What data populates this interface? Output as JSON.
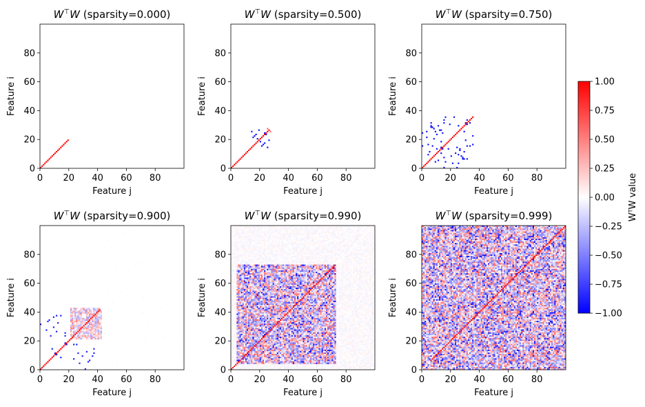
{
  "chart_data": [
    {
      "type": "heatmap",
      "title": "W^T W (sparsity=0.000)",
      "title_math": "W",
      "title_sup": "⊤",
      "title_math2": "W",
      "title_rest": " (sparsity=0.000)",
      "xlabel": "Feature  j",
      "ylabel": "Feature  i",
      "xticks": [
        0,
        20,
        40,
        60,
        80
      ],
      "yticks": [
        0,
        20,
        40,
        60,
        80
      ],
      "xlim": [
        0,
        99
      ],
      "ylim": [
        0,
        99
      ],
      "matrix_size": 100,
      "diagonal_extent": 20,
      "structure": "diagonal of +1 for first 20 features, zeros elsewhere"
    },
    {
      "type": "heatmap",
      "title": "W^T W (sparsity=0.500)",
      "title_math": "W",
      "title_sup": "⊤",
      "title_math2": "W",
      "title_rest": " (sparsity=0.500)",
      "xlabel": "Feature  j",
      "ylabel": "Feature  i",
      "xticks": [
        0,
        20,
        40,
        60,
        80
      ],
      "yticks": [
        0,
        20,
        40,
        60,
        80
      ],
      "xlim": [
        0,
        99
      ],
      "ylim": [
        0,
        99
      ],
      "matrix_size": 100,
      "diagonal_extent": 27,
      "structure": "diagonal of +1 up to ~27, a few negative off-diagonal entries near features 14-26"
    },
    {
      "type": "heatmap",
      "title": "W^T W (sparsity=0.750)",
      "title_math": "W",
      "title_sup": "⊤",
      "title_math2": "W",
      "title_rest": " (sparsity=0.750)",
      "xlabel": "Feature  j",
      "ylabel": "Feature  i",
      "xticks": [
        0,
        20,
        40,
        60,
        80
      ],
      "yticks": [
        0,
        20,
        40,
        60,
        80
      ],
      "xlim": [
        0,
        99
      ],
      "ylim": [
        0,
        99
      ],
      "matrix_size": 100,
      "diagonal_extent": 36,
      "structure": "diagonal of +1 up to ~36, scattered -1 entries forming antipodal pairs"
    },
    {
      "type": "heatmap",
      "title": "W^T W (sparsity=0.900)",
      "title_math": "W",
      "title_sup": "⊤",
      "title_math2": "W",
      "title_rest": " (sparsity=0.900)",
      "xlabel": "Feature  j",
      "ylabel": "Feature  i",
      "xticks": [
        0,
        20,
        40,
        60,
        80
      ],
      "yticks": [
        0,
        20,
        40,
        60,
        80
      ],
      "xlim": [
        0,
        99
      ],
      "ylim": [
        0,
        99
      ],
      "matrix_size": 100,
      "diagonal_extent": 42,
      "structure": "diagonal of +1 up to ~42, dense block with mixed signs for features 21-42"
    },
    {
      "type": "heatmap",
      "title": "W^T W (sparsity=0.990)",
      "title_math": "W",
      "title_sup": "⊤",
      "title_math2": "W",
      "title_rest": " (sparsity=0.990)",
      "xlabel": "Feature  j",
      "ylabel": "Feature  i",
      "xticks": [
        0,
        20,
        40,
        60,
        80
      ],
      "yticks": [
        0,
        20,
        40,
        60,
        80
      ],
      "xlim": [
        0,
        99
      ],
      "ylim": [
        0,
        99
      ],
      "matrix_size": 100,
      "diagonal_extent": 73,
      "structure": "diagonal of +1 up to ~73, dense interference block with mixed signs"
    },
    {
      "type": "heatmap",
      "title": "W^T W (sparsity=0.999)",
      "title_math": "W",
      "title_sup": "⊤",
      "title_math2": "W",
      "title_rest": " (sparsity=0.999)",
      "xlabel": "Feature  j",
      "ylabel": "Feature  i",
      "xticks": [
        0,
        20,
        40,
        60,
        80
      ],
      "yticks": [
        0,
        20,
        40,
        60,
        80
      ],
      "xlim": [
        0,
        99
      ],
      "ylim": [
        0,
        99
      ],
      "matrix_size": 100,
      "diagonal_extent": 100,
      "structure": "diagonal of +1 across all features, dense mixed-sign interference throughout"
    }
  ],
  "colorbar": {
    "label": "WᵀW value",
    "range": [
      -1.0,
      1.0
    ],
    "ticks": [
      "1.00",
      "0.75",
      "0.50",
      "0.25",
      "0.00",
      "−0.25",
      "−0.50",
      "−0.75",
      "−1.00"
    ],
    "tick_values": [
      1.0,
      0.75,
      0.5,
      0.25,
      0.0,
      -0.25,
      -0.5,
      -0.75,
      -1.0
    ],
    "colormap": "bwr",
    "color_low": "#0000ff",
    "color_mid": "#ffffff",
    "color_high": "#ff0000"
  }
}
